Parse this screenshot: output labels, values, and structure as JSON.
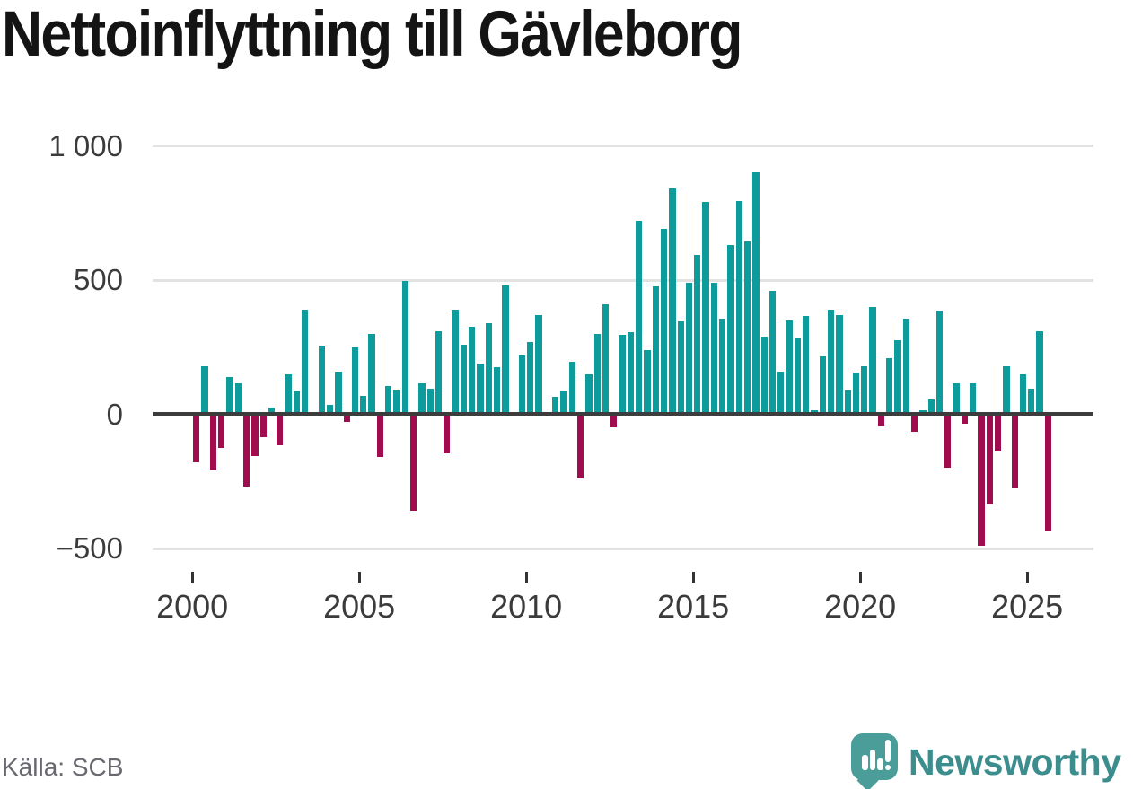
{
  "title": "Nettoinflyttning till Gävleborg",
  "source": "Källa: SCB",
  "brand": {
    "name": "Newsworthy",
    "mark_color": "#4a9d99",
    "text_color": "#3c8e8e",
    "mark_icon": "bar-chart-exclamation-speech-bubble"
  },
  "colors": {
    "positive_bar": "#0d9b9b",
    "negative_bar": "#a00d4e",
    "grid": "#e2e2e2",
    "zero_line": "#3c3c3c",
    "axis_text": "#3b3b3b",
    "title_text": "#141414",
    "source_text": "#68686f"
  },
  "chart_data": {
    "type": "bar",
    "title": "Nettoinflyttning till Gävleborg",
    "legend": "none",
    "grid": "horizontal",
    "ylim": [
      -500,
      1000
    ],
    "yticks": [
      {
        "label": "1 000",
        "value": 1000
      },
      {
        "label": "500",
        "value": 500
      },
      {
        "label": "0",
        "value": 0
      },
      {
        "label": "−500",
        "value": -500
      }
    ],
    "xticks": [
      2000,
      2005,
      2010,
      2015,
      2020,
      2025
    ],
    "categories": [
      "2000Q1",
      "2000Q2",
      "2000Q3",
      "2000Q4",
      "2001Q1",
      "2001Q2",
      "2001Q3",
      "2001Q4",
      "2002Q1",
      "2002Q2",
      "2002Q3",
      "2002Q4",
      "2003Q1",
      "2003Q2",
      "2003Q3",
      "2003Q4",
      "2004Q1",
      "2004Q2",
      "2004Q3",
      "2004Q4",
      "2005Q1",
      "2005Q2",
      "2005Q3",
      "2005Q4",
      "2006Q1",
      "2006Q2",
      "2006Q3",
      "2006Q4",
      "2007Q1",
      "2007Q2",
      "2007Q3",
      "2007Q4",
      "2008Q1",
      "2008Q2",
      "2008Q3",
      "2008Q4",
      "2009Q1",
      "2009Q2",
      "2009Q3",
      "2009Q4",
      "2010Q1",
      "2010Q2",
      "2010Q3",
      "2010Q4",
      "2011Q1",
      "2011Q2",
      "2011Q3",
      "2011Q4",
      "2012Q1",
      "2012Q2",
      "2012Q3",
      "2012Q4",
      "2013Q1",
      "2013Q2",
      "2013Q3",
      "2013Q4",
      "2014Q1",
      "2014Q2",
      "2014Q3",
      "2014Q4",
      "2015Q1",
      "2015Q2",
      "2015Q3",
      "2015Q4",
      "2016Q1",
      "2016Q2",
      "2016Q3",
      "2016Q4",
      "2017Q1",
      "2017Q2",
      "2017Q3",
      "2017Q4",
      "2018Q1",
      "2018Q2",
      "2018Q3",
      "2018Q4",
      "2019Q1",
      "2019Q2",
      "2019Q3",
      "2019Q4",
      "2020Q1",
      "2020Q2",
      "2020Q3",
      "2020Q4",
      "2021Q1",
      "2021Q2",
      "2021Q3",
      "2021Q4",
      "2022Q1",
      "2022Q2",
      "2022Q3",
      "2022Q4",
      "2023Q1",
      "2023Q2",
      "2023Q3",
      "2023Q4",
      "2024Q1",
      "2024Q2",
      "2024Q3",
      "2024Q4",
      "2025Q1",
      "2025Q2",
      "2025Q3"
    ],
    "values": [
      -180,
      180,
      -210,
      -125,
      140,
      115,
      -270,
      -155,
      -85,
      25,
      -115,
      150,
      85,
      390,
      0,
      255,
      35,
      160,
      -30,
      250,
      70,
      300,
      -160,
      105,
      90,
      495,
      -360,
      115,
      95,
      310,
      -145,
      390,
      260,
      325,
      190,
      340,
      175,
      480,
      0,
      220,
      270,
      370,
      0,
      65,
      85,
      195,
      -240,
      150,
      300,
      410,
      -50,
      295,
      305,
      720,
      240,
      475,
      690,
      840,
      345,
      490,
      595,
      790,
      490,
      355,
      630,
      795,
      645,
      900,
      290,
      460,
      160,
      350,
      285,
      365,
      15,
      215,
      390,
      370,
      90,
      155,
      180,
      400,
      -45,
      210,
      275,
      355,
      -65,
      15,
      55,
      385,
      -200,
      115,
      -35,
      115,
      -490,
      -335,
      -140,
      180,
      -275,
      150,
      95,
      310,
      -435
    ]
  }
}
